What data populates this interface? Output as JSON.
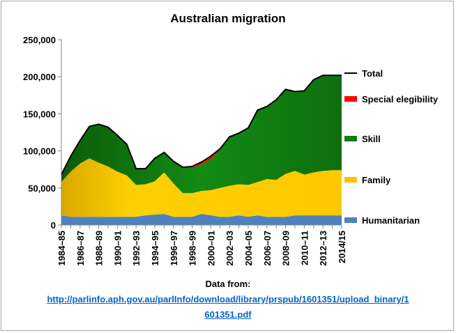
{
  "chart_data": {
    "type": "area",
    "stacked": true,
    "title": "Australian migration",
    "x": [
      "1984–85",
      "1985–86",
      "1986–87",
      "1987–88",
      "1988–89",
      "1989–90",
      "1990–91",
      "1991–92",
      "1992–93",
      "1993–94",
      "1994–95",
      "1995–96",
      "1996–97",
      "1997–98",
      "1998–99",
      "1999–00",
      "2000–01",
      "2001–02",
      "2002–03",
      "2003–04",
      "2004–05",
      "2005–06",
      "2006–07",
      "2007–08",
      "2008–09",
      "2009–10",
      "2010–11",
      "2011–12",
      "2012–13",
      "2013–14",
      "2014/15"
    ],
    "xtick_labels": [
      "1984–85",
      "1986–87",
      "1988–89",
      "1990–91",
      "1992–93",
      "1994–95",
      "1996–97",
      "1998–99",
      "2000–01",
      "2002–03",
      "2004–05",
      "2006–07",
      "2008–09",
      "2010–11",
      "2012–13",
      "2014/15"
    ],
    "ylim": [
      0,
      250000
    ],
    "yticks": [
      "0",
      "50,000",
      "100,000",
      "150,000",
      "200,000",
      "250,000"
    ],
    "ytick_values": [
      0,
      50000,
      100000,
      150000,
      200000,
      250000
    ],
    "grid": false,
    "legend_position": "right",
    "series": [
      {
        "name": "Humanitarian",
        "color": "#4f81bd",
        "values": [
          13000,
          11000,
          11000,
          11000,
          11000,
          11000,
          11000,
          11000,
          11000,
          13000,
          14000,
          15000,
          11000,
          11000,
          11000,
          15000,
          13000,
          11000,
          11000,
          13000,
          11000,
          13000,
          11000,
          11000,
          11000,
          13000,
          13000,
          13000,
          13000,
          13000,
          13000
        ]
      },
      {
        "name": "Family",
        "color": "#ffc000",
        "values": [
          45000,
          61000,
          72000,
          79000,
          73000,
          68000,
          61000,
          56000,
          43000,
          42000,
          45000,
          56000,
          45000,
          32000,
          32000,
          31000,
          34000,
          39000,
          42000,
          42000,
          43000,
          45000,
          51000,
          50000,
          58000,
          60000,
          55000,
          58000,
          60000,
          61000,
          61000
        ]
      },
      {
        "name": "Skill",
        "color": "#127c12",
        "values": [
          10000,
          21000,
          31000,
          43000,
          52000,
          53000,
          49000,
          42000,
          22000,
          21000,
          31000,
          27000,
          30000,
          35000,
          34000,
          36000,
          42000,
          52000,
          66000,
          69000,
          77000,
          97000,
          98000,
          108000,
          114000,
          107000,
          113000,
          125000,
          129000,
          128000,
          128000
        ]
      },
      {
        "name": "Special elegibility",
        "color": "#ff0000",
        "values": [
          0,
          0,
          0,
          0,
          0,
          0,
          0,
          0,
          0,
          0,
          0,
          0,
          0,
          1000,
          2000,
          3000,
          4000,
          1000,
          0,
          0,
          0,
          0,
          0,
          0,
          0,
          0,
          0,
          0,
          0,
          0,
          0
        ]
      }
    ],
    "total": {
      "name": "Total",
      "color": "#000000",
      "values": [
        68000,
        93000,
        114000,
        133000,
        136000,
        132000,
        121000,
        109000,
        76000,
        76000,
        90000,
        98000,
        86000,
        78000,
        79000,
        85000,
        93000,
        103000,
        119000,
        124000,
        131000,
        155000,
        160000,
        169000,
        183000,
        180000,
        181000,
        196000,
        202000,
        202000,
        202000
      ]
    },
    "legend": [
      "Total",
      "Special elegibility",
      "Skill",
      "Family",
      "Humanitarian"
    ]
  },
  "source": {
    "heading": "Data from:",
    "link": "http://parlinfo.aph.gov.au/parlInfo/download/library/prspub/1601351/upload_binary/1601351.pdf"
  }
}
